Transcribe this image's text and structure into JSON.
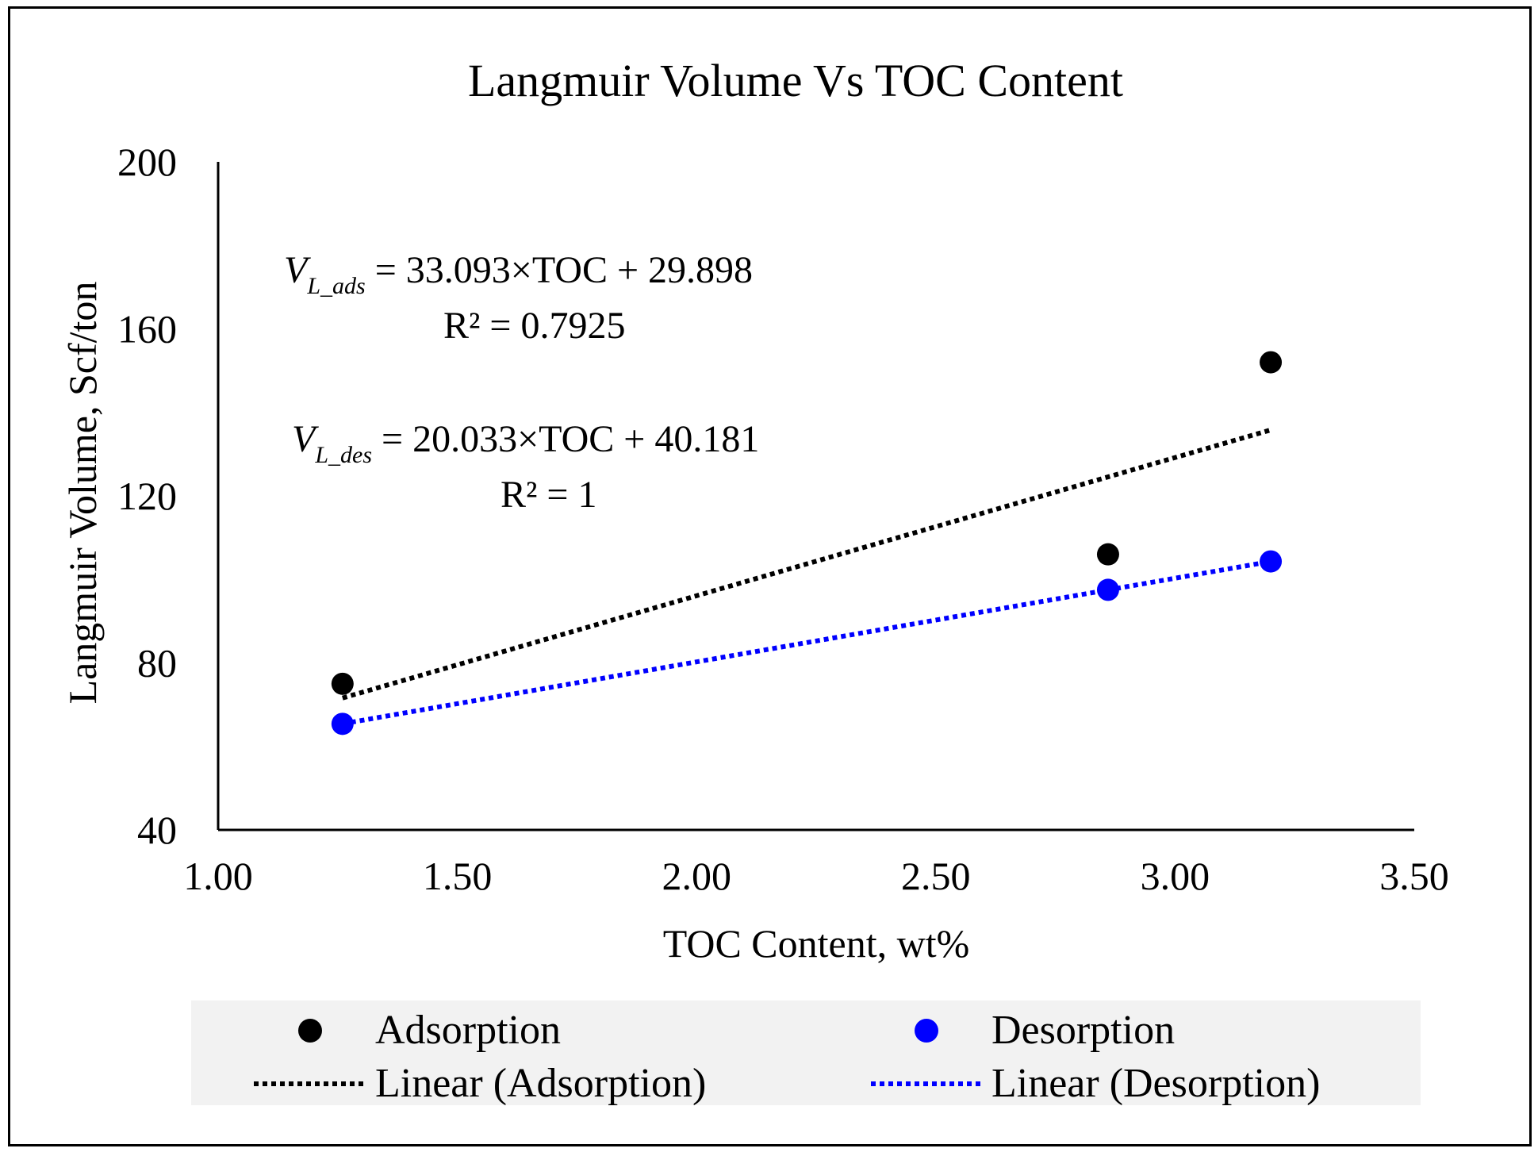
{
  "chart_data": {
    "type": "scatter",
    "title": "Langmuir Volume Vs TOC Content",
    "xlabel": "TOC Content, wt%",
    "ylabel": "Langmuir Volume, Scf/ton",
    "xlim": [
      1.0,
      3.5
    ],
    "ylim": [
      40,
      200
    ],
    "x_ticks": [
      "1.00",
      "1.50",
      "2.00",
      "2.50",
      "3.00",
      "3.50"
    ],
    "y_ticks": [
      "40",
      "80",
      "120",
      "160",
      "200"
    ],
    "grid": false,
    "legend_position": "bottom",
    "series": [
      {
        "name": "Adsorption",
        "color": "#000000",
        "x": [
          1.26,
          2.86,
          3.2
        ],
        "y": [
          75,
          106,
          152
        ],
        "trendline": {
          "name": "Linear (Adsorption)",
          "slope": 33.093,
          "intercept": 29.898,
          "equation_var": "V",
          "equation_sub": "L_ads",
          "equation_rhs": " = 33.093×TOC + 29.898",
          "r2_label": "R² = 0.7925"
        }
      },
      {
        "name": "Desorption",
        "color": "#0000ff",
        "x": [
          1.26,
          2.86,
          3.2
        ],
        "y": [
          65.4,
          97.5,
          104.3
        ],
        "trendline": {
          "name": "Linear (Desorption)",
          "slope": 20.033,
          "intercept": 40.181,
          "equation_var": "V",
          "equation_sub": "L_des",
          "equation_rhs": " = 20.033×TOC + 40.181",
          "r2_label": "R² = 1"
        }
      }
    ]
  }
}
